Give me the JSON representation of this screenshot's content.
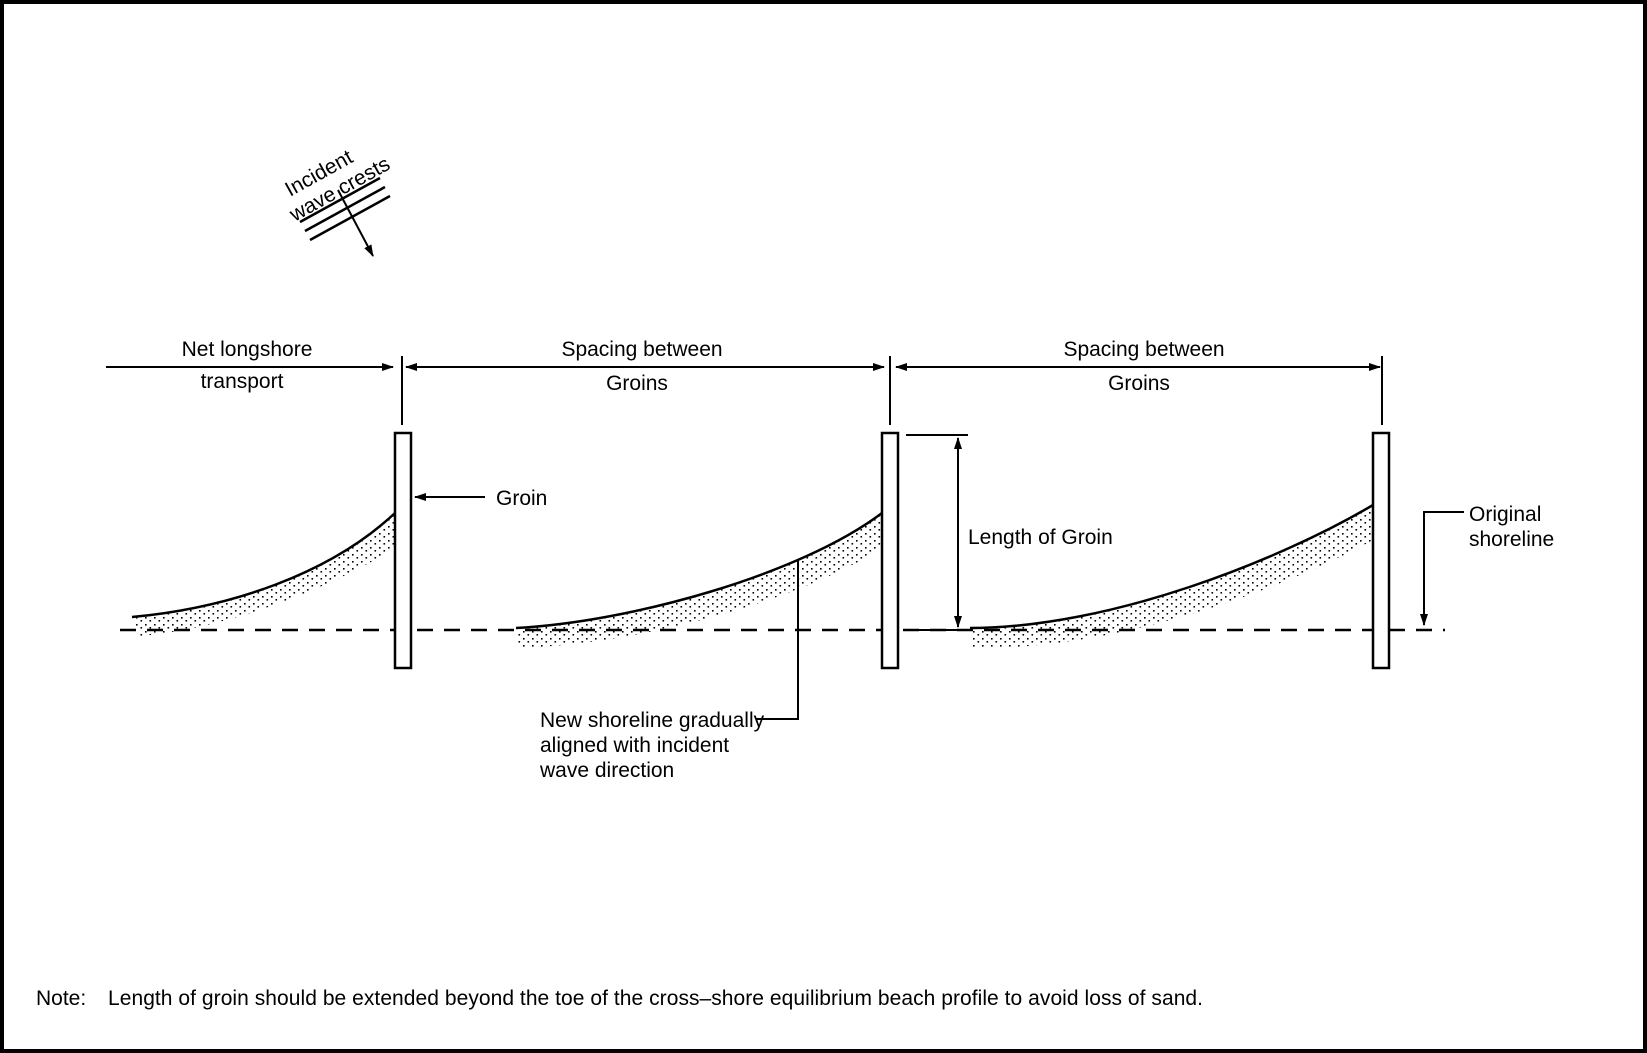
{
  "diagram": {
    "labels": {
      "incident_line1": "Incident",
      "incident_line2": "wave crests",
      "net_longshore_line1": "Net longshore",
      "net_longshore_line2": "transport",
      "spacing1_line1": "Spacing  between",
      "spacing1_line2": "Groins",
      "spacing2_line1": "Spacing  between",
      "spacing2_line2": "Groins",
      "groin": "Groin",
      "length_of_groin": "Length  of Groin",
      "original_line1": "Original",
      "original_line2": "shoreline",
      "new_shoreline_line1": "New  shoreline  gradually",
      "new_shoreline_line2": "aligned  with  incident",
      "new_shoreline_line3": "wave  direction"
    },
    "note_label": "Note:",
    "note_text": "Length  of  groin  should  be  extended  beyond  the  toe  of  the  cross–shore  equilibrium   beach  profile  to  avoid  loss  of  sand.",
    "colors": {
      "line": "#000000",
      "background": "#ffffff",
      "stipple": "#000000"
    }
  }
}
